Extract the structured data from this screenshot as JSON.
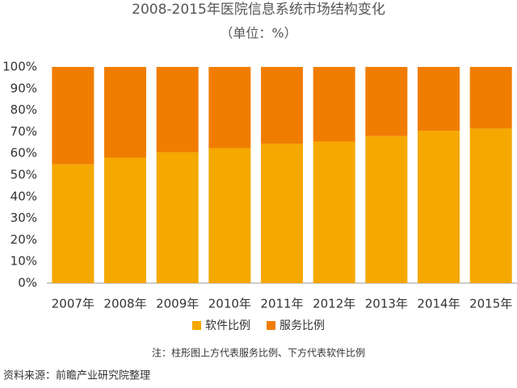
{
  "chart_data": {
    "type": "stacked_bar",
    "title": "2008-2015年医院信息系统市场结构变化",
    "subtitle": "（单位：%）",
    "categories": [
      "2007年",
      "2008年",
      "2009年",
      "2010年",
      "2011年",
      "2012年",
      "2013年",
      "2014年",
      "2015年"
    ],
    "series": [
      {
        "name": "软件比例",
        "color": "#f5a800",
        "values": [
          55,
          58,
          60.5,
          62.5,
          64.5,
          65.5,
          68,
          70.5,
          71.5
        ]
      },
      {
        "name": "服务比例",
        "color": "#f07d00",
        "values": [
          45,
          42,
          39.5,
          37.5,
          35.5,
          34.5,
          32,
          29.5,
          28.5
        ]
      }
    ],
    "ylim": [
      0,
      100
    ],
    "yticks": [
      {
        "value": 0,
        "label": "0%"
      },
      {
        "value": 10,
        "label": "10%"
      },
      {
        "value": 20,
        "label": "20%"
      },
      {
        "value": 30,
        "label": "30%"
      },
      {
        "value": 40,
        "label": "40%"
      },
      {
        "value": 50,
        "label": "50%"
      },
      {
        "value": 60,
        "label": "60%"
      },
      {
        "value": 70,
        "label": "70%"
      },
      {
        "value": 80,
        "label": "80%"
      },
      {
        "value": 90,
        "label": "90%"
      },
      {
        "value": 100,
        "label": "100%"
      }
    ],
    "note": "注：柱形图上方代表服务比例、下方代表软件比例",
    "source": "资料来源：前瞻产业研究院整理"
  }
}
